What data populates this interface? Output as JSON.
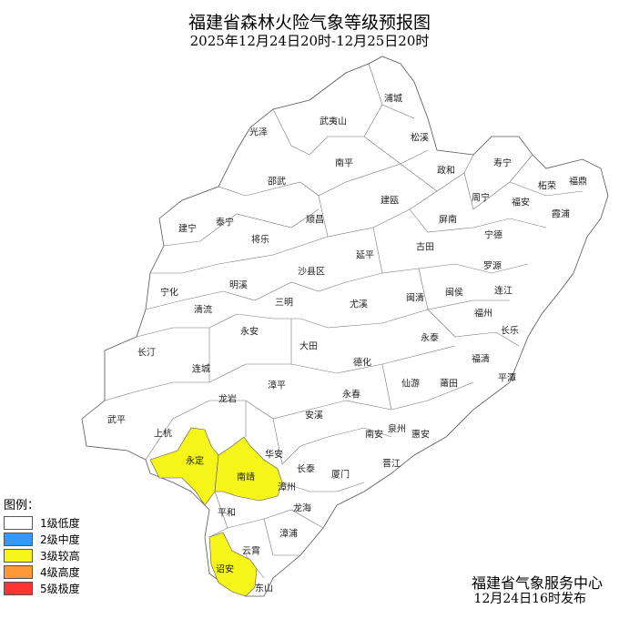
{
  "title": "福建省森林火险气象等级预报图",
  "subtitle": "2025年12月24日20时-12月25日20时",
  "legend": {
    "title": "图例：",
    "items": [
      {
        "label": "1级低度",
        "color": "#ffffff"
      },
      {
        "label": "2级中度",
        "color": "#3399ff"
      },
      {
        "label": "3级较高",
        "color": "#f5f51a"
      },
      {
        "label": "4级高度",
        "color": "#ff9933"
      },
      {
        "label": "5级极度",
        "color": "#ff3333"
      }
    ]
  },
  "map": {
    "default_level": "1级低度",
    "level3_counties": [
      "永定",
      "南靖",
      "诏安"
    ],
    "counties": [
      "浦城",
      "武夷山",
      "光泽",
      "松溪",
      "南平",
      "政和",
      "寿宁",
      "柘荣",
      "福鼎",
      "邵武",
      "建瓯",
      "周宁",
      "福安",
      "霞浦",
      "屏南",
      "顺昌",
      "泰宁",
      "建宁",
      "将乐",
      "宁德",
      "古田",
      "延平",
      "罗源",
      "沙县区",
      "明溪",
      "宁化",
      "三明",
      "尤溪",
      "闽清",
      "闽侯",
      "连江",
      "清流",
      "福州",
      "长乐",
      "永安",
      "大田",
      "永泰",
      "长汀",
      "德化",
      "福清",
      "连城",
      "漳平",
      "仙游",
      "莆田",
      "平潭",
      "龙岩",
      "永春",
      "安溪",
      "武平",
      "上杭",
      "南安",
      "泉州",
      "惠安",
      "华安",
      "永定",
      "南靖",
      "长泰",
      "厦门",
      "晋江",
      "漳州",
      "龙海",
      "平和",
      "漳浦",
      "云霄",
      "诏安",
      "东山"
    ]
  },
  "publisher": {
    "name": "福建省气象服务中心",
    "time": "12月24日16时发布"
  }
}
